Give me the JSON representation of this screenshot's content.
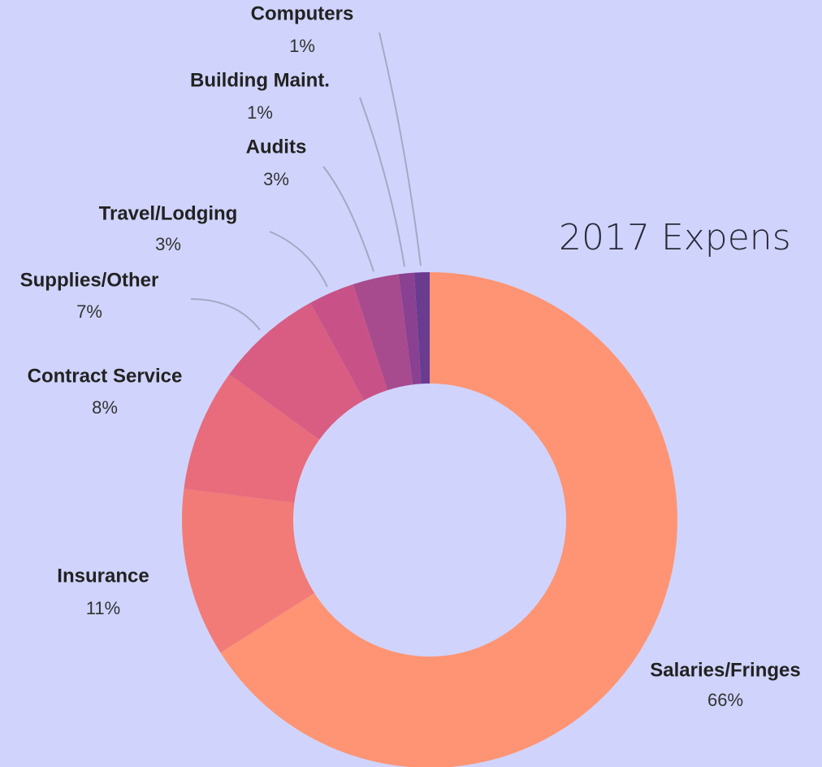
{
  "chart_data": {
    "type": "donut",
    "title": "2017 Expens",
    "categories": [
      "Salaries/Fringes",
      "Insurance",
      "Contract Service",
      "Supplies/Other",
      "Travel/Lodging",
      "Audits",
      "Building Maint.",
      "Computers"
    ],
    "values": [
      66,
      11,
      8,
      7,
      3,
      3,
      1,
      1
    ],
    "value_labels": [
      "66%",
      "11%",
      "8%",
      "7%",
      "3%",
      "3%",
      "1%",
      "1%"
    ],
    "colors": [
      "#fe9473",
      "#f27b77",
      "#e96c7c",
      "#d95d82",
      "#c85288",
      "#a84a8e",
      "#8a4191",
      "#6a3c8f"
    ]
  }
}
